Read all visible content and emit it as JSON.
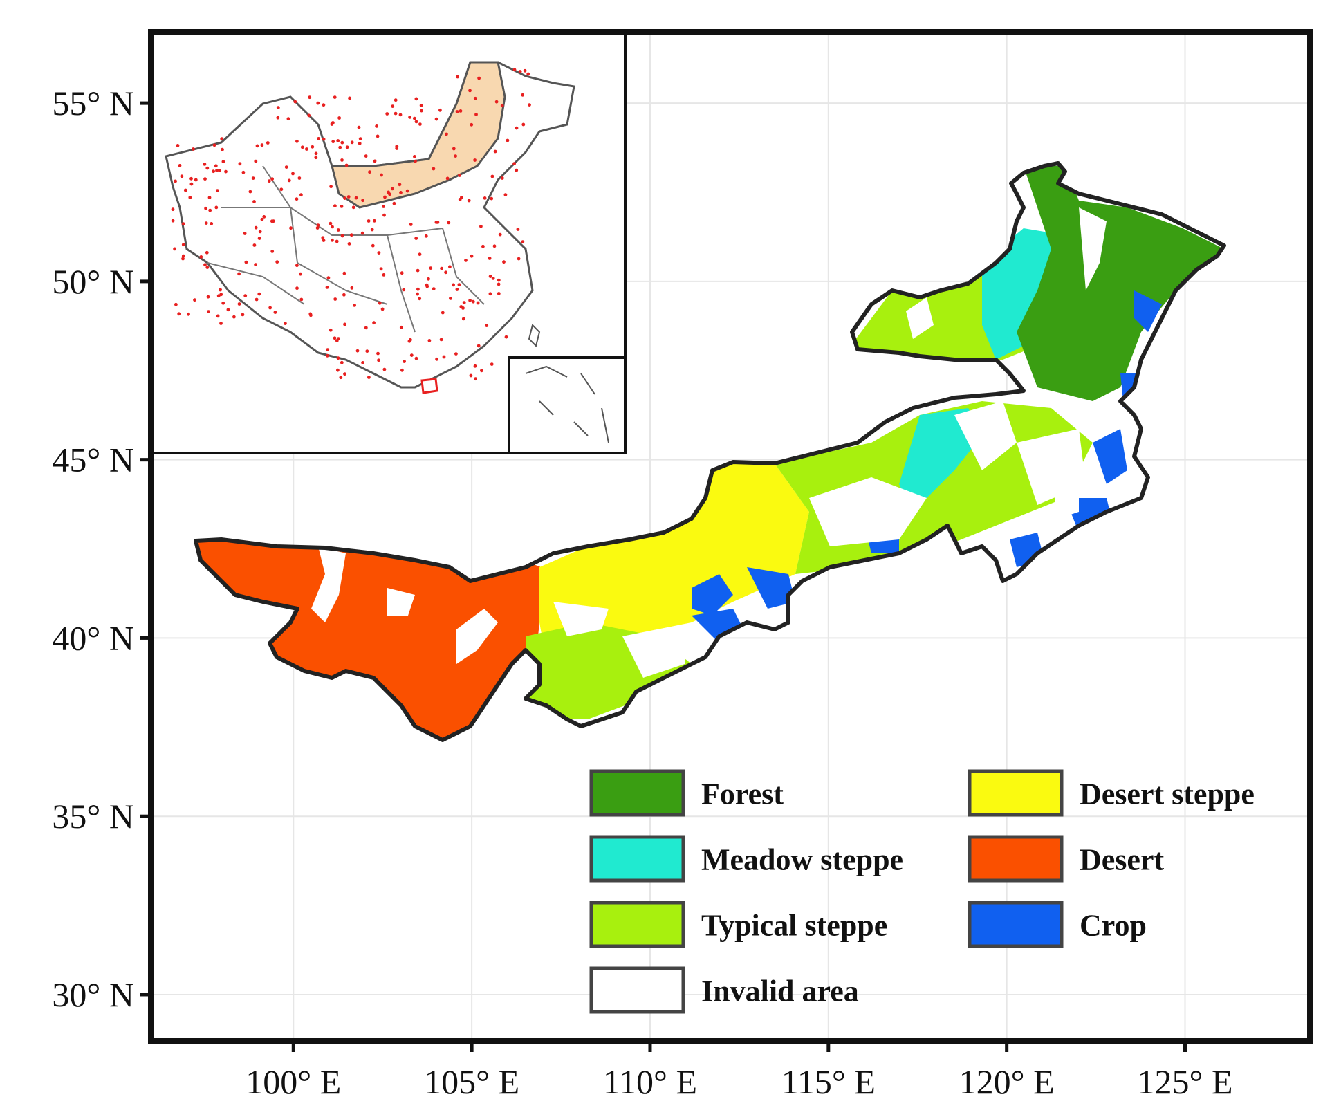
{
  "map": {
    "projection": "geographic",
    "grid": true,
    "lon_range": [
      96,
      128.5
    ],
    "lat_range": [
      28.7,
      57
    ],
    "x_ticks": [
      {
        "value": 100,
        "label": "100° E"
      },
      {
        "value": 105,
        "label": "105° E"
      },
      {
        "value": 110,
        "label": "110° E"
      },
      {
        "value": 115,
        "label": "115° E"
      },
      {
        "value": 120,
        "label": "120° E"
      },
      {
        "value": 125,
        "label": "125° E"
      }
    ],
    "y_ticks": [
      {
        "value": 30,
        "label": "30° N"
      },
      {
        "value": 35,
        "label": "35° N"
      },
      {
        "value": 40,
        "label": "40° N"
      },
      {
        "value": 45,
        "label": "45° N"
      },
      {
        "value": 50,
        "label": "50° N"
      },
      {
        "value": 55,
        "label": "55° N"
      }
    ],
    "region_colors": {
      "forest": "#3a9e12",
      "meadow": "#20ead0",
      "typical": "#a8f00e",
      "desert_steppe": "#fafa10",
      "desert": "#fa5000",
      "crop": "#1060f0",
      "inset_region": "#f8d8b0",
      "station_dot": "#e82020",
      "boundary": "#222222"
    },
    "legend": {
      "position": "bottom-right",
      "entries": [
        {
          "label": "Forest",
          "color": "#3a9e12"
        },
        {
          "label": "Meadow steppe",
          "color": "#20ead0"
        },
        {
          "label": "Typical steppe",
          "color": "#a8f00e"
        },
        {
          "label": "Invalid area",
          "color": "#ffffff"
        },
        {
          "label": "Desert steppe",
          "color": "#fafa10"
        },
        {
          "label": "Desert",
          "color": "#fa5000"
        },
        {
          "label": "Crop",
          "color": "#1060f0"
        }
      ]
    },
    "inset": {
      "position": "top-left",
      "content": "china-overview-with-stations"
    }
  }
}
